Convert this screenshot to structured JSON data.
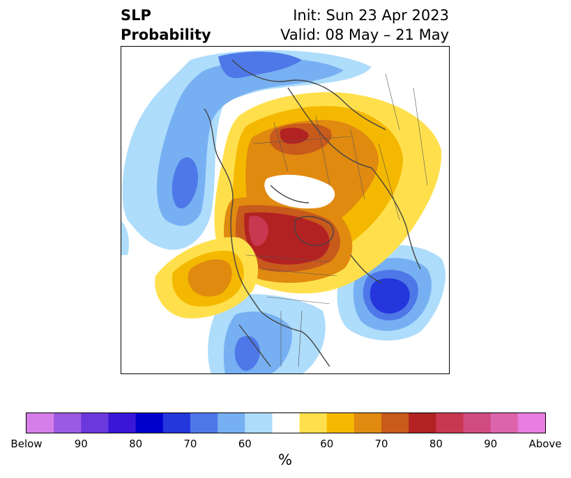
{
  "title": {
    "left_line1": "SLP",
    "left_line2": "Probability",
    "right_line1": "Init: Sun 23 Apr 2023",
    "right_line2": "Valid: 08 May – 21 May"
  },
  "colorbar": {
    "unit": "%",
    "tick_labels": [
      "Below",
      "90",
      "80",
      "70",
      "60",
      "60",
      "70",
      "80",
      "90",
      "Above"
    ],
    "colors": [
      "#d67ee8",
      "#9b5ae2",
      "#6b38dc",
      "#3a17d8",
      "#0000cc",
      "#2436dc",
      "#4e78e8",
      "#77b0f2",
      "#aedcfb",
      "#ffffff",
      "#ffe04c",
      "#f5b800",
      "#e08a10",
      "#c85a1c",
      "#b22222",
      "#c83850",
      "#d04c80",
      "#dc64ac",
      "#e87ee0"
    ]
  },
  "map": {
    "projection": "north-polar-stereographic",
    "field": "SLP probability",
    "anomaly_regions": [
      {
        "name": "pacific-above",
        "category": "above",
        "peak": "above-70"
      },
      {
        "name": "north-america-above",
        "category": "above",
        "peak": "above-85"
      },
      {
        "name": "siberia-above",
        "category": "above",
        "peak": "above-80"
      },
      {
        "name": "atlantic-below",
        "category": "below",
        "peak": "below-75"
      },
      {
        "name": "pacific-west-below",
        "category": "below",
        "peak": "below-70"
      },
      {
        "name": "asia-below",
        "category": "below",
        "peak": "below-70"
      },
      {
        "name": "us-southwest-below",
        "category": "below",
        "peak": "below-70"
      }
    ]
  }
}
